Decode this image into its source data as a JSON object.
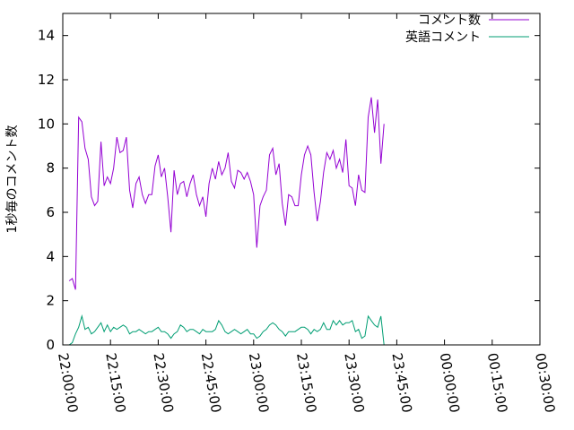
{
  "chart_data": {
    "type": "line",
    "ylabel": "1秒毎のコメント数",
    "xlabel": "",
    "ylim": [
      0,
      15
    ],
    "yticks": [
      0,
      2,
      4,
      6,
      8,
      10,
      12,
      14
    ],
    "xlim": [
      "22:00:00",
      "00:30:00"
    ],
    "xtick_labels": [
      "22:00:00",
      "22:15:00",
      "22:30:00",
      "22:45:00",
      "23:00:00",
      "23:15:00",
      "23:30:00",
      "23:45:00",
      "00:00:00",
      "00:15:00",
      "00:30:00"
    ],
    "grid": false,
    "legend": "top-right",
    "sample_interval_seconds": 60,
    "x_start": "22:02:00",
    "series": [
      {
        "name": "コメント数",
        "color": "#9400d3",
        "values": [
          2.9,
          3.0,
          2.5,
          10.3,
          10.1,
          8.9,
          8.4,
          6.7,
          6.3,
          6.5,
          9.2,
          7.2,
          7.6,
          7.3,
          8.0,
          9.4,
          8.7,
          8.8,
          9.4,
          7.0,
          6.2,
          7.3,
          7.6,
          6.8,
          6.4,
          6.8,
          6.8,
          8.1,
          8.6,
          7.6,
          8.0,
          6.7,
          5.1,
          7.9,
          6.8,
          7.3,
          7.4,
          6.7,
          7.3,
          7.7,
          6.8,
          6.3,
          6.7,
          5.8,
          7.3,
          8.0,
          7.5,
          8.3,
          7.7,
          8.0,
          8.7,
          7.4,
          7.1,
          7.9,
          7.8,
          7.5,
          7.8,
          7.4,
          6.8,
          4.4,
          6.3,
          6.7,
          7.0,
          8.6,
          8.9,
          7.7,
          8.2,
          6.4,
          5.4,
          6.8,
          6.7,
          6.3,
          6.3,
          7.7,
          8.6,
          9.0,
          8.6,
          6.9,
          5.6,
          6.5,
          7.8,
          8.7,
          8.4,
          8.8,
          8.0,
          8.4,
          7.8,
          9.3,
          7.2,
          7.1,
          6.3,
          7.7,
          7.0,
          6.9,
          10.3,
          11.2,
          9.6,
          11.1,
          8.2,
          10.0
        ]
      },
      {
        "name": "英語コメント",
        "color": "#009e73",
        "values": [
          0.0,
          0.1,
          0.5,
          0.8,
          1.3,
          0.7,
          0.8,
          0.5,
          0.6,
          0.8,
          1.0,
          0.6,
          0.9,
          0.6,
          0.8,
          0.7,
          0.8,
          0.9,
          0.8,
          0.5,
          0.6,
          0.6,
          0.7,
          0.6,
          0.5,
          0.6,
          0.6,
          0.7,
          0.8,
          0.6,
          0.6,
          0.5,
          0.3,
          0.5,
          0.6,
          0.9,
          0.8,
          0.6,
          0.7,
          0.7,
          0.6,
          0.5,
          0.7,
          0.6,
          0.6,
          0.6,
          0.7,
          1.1,
          0.9,
          0.6,
          0.5,
          0.6,
          0.7,
          0.6,
          0.5,
          0.6,
          0.7,
          0.5,
          0.5,
          0.3,
          0.4,
          0.6,
          0.7,
          0.9,
          1.0,
          0.9,
          0.7,
          0.6,
          0.4,
          0.6,
          0.6,
          0.6,
          0.7,
          0.8,
          0.8,
          0.7,
          0.5,
          0.7,
          0.6,
          0.7,
          1.0,
          0.7,
          0.7,
          1.1,
          0.9,
          1.1,
          0.9,
          1.0,
          1.0,
          1.1,
          0.6,
          0.7,
          0.3,
          0.4,
          1.3,
          1.1,
          0.9,
          0.8,
          1.3,
          0.0
        ]
      }
    ]
  }
}
